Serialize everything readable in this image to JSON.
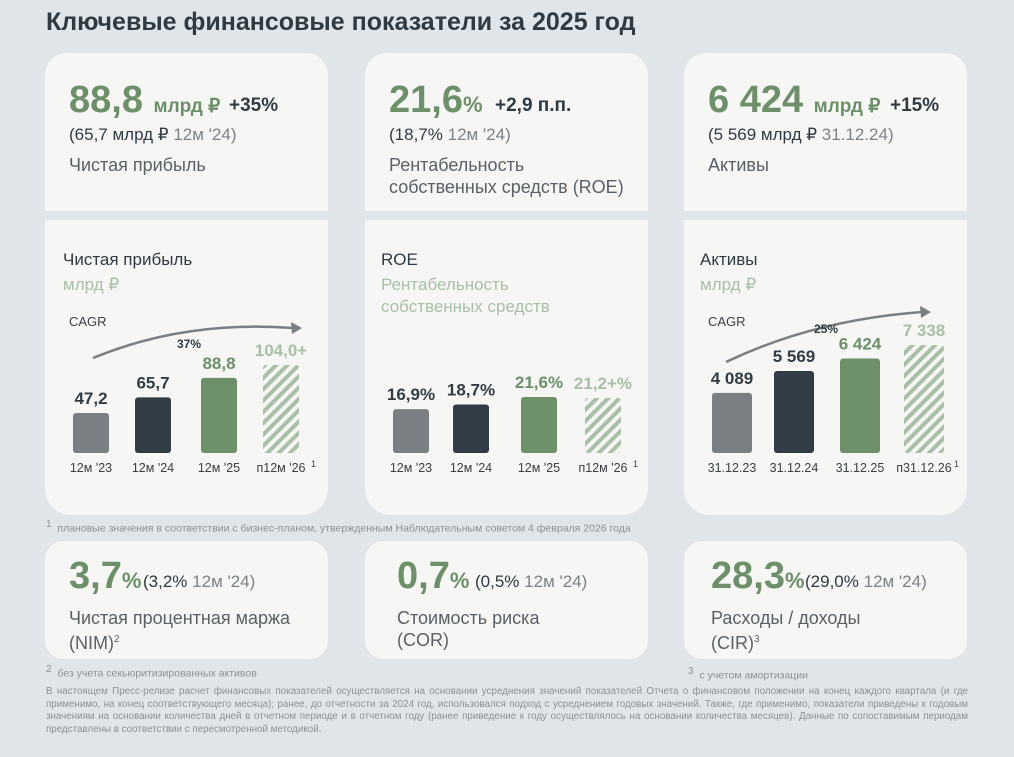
{
  "title": "Ключевые финансовые показатели за 2025 год",
  "colors": {
    "green": "#6d8f6a",
    "dark": "#323c44",
    "gray": "#7a7f84",
    "hatch": "#a9bfa7",
    "bg": "#e0e5e9",
    "card": "#f6f6f5"
  },
  "kpi_top": [
    {
      "value": "88,8",
      "unit": "млрд ₽",
      "delta": "+35%",
      "prev_a": "(65,7 млрд ₽",
      "prev_b": "12м '24)",
      "label_1": "Чистая прибыль",
      "label_2": ""
    },
    {
      "value": "21,6",
      "unit": "%",
      "delta": "+2,9 п.п.",
      "prev_a": "(18,7%",
      "prev_b": "12м '24)",
      "label_1": "Рентабельность",
      "label_2": "собственных средств (ROE)"
    },
    {
      "value": "6 424",
      "unit": "млрд ₽",
      "delta": "+15%",
      "prev_a": "(5 569 млрд ₽",
      "prev_b": "31.12.24)",
      "label_1": "Активы",
      "label_2": ""
    }
  ],
  "chart_data": [
    {
      "type": "bar",
      "title": "Чистая прибыль",
      "subtitle_1": "млрд ₽",
      "subtitle_2": "",
      "cagr_label": "CAGR",
      "cagr_value": "37%",
      "categories": [
        "12м '23",
        "12м '24",
        "12м '25",
        "п12м '26"
      ],
      "values": [
        47.2,
        65.7,
        88.8,
        104.0
      ],
      "value_labels": [
        "47,2",
        "65,7",
        "88,8",
        "104,0+"
      ],
      "footnote_mark": "1"
    },
    {
      "type": "bar",
      "title": "ROE",
      "subtitle_1": "Рентабельность",
      "subtitle_2": "собственных средств",
      "cagr_label": "",
      "cagr_value": "",
      "categories": [
        "12м '23",
        "12м '24",
        "12м '25",
        "п12м '26"
      ],
      "values": [
        16.9,
        18.7,
        21.6,
        21.2
      ],
      "value_labels": [
        "16,9%",
        "18,7%",
        "21,6%",
        "21,2+%"
      ],
      "footnote_mark": "1"
    },
    {
      "type": "bar",
      "title": "Активы",
      "subtitle_1": "млрд ₽",
      "subtitle_2": "",
      "cagr_label": "CAGR",
      "cagr_value": "25%",
      "categories": [
        "31.12.23",
        "31.12.24",
        "31.12.25",
        "п31.12.26"
      ],
      "values": [
        4089,
        5569,
        6424,
        7338
      ],
      "value_labels": [
        "4 089",
        "5 569",
        "6 424",
        "7 338"
      ],
      "footnote_mark": "1"
    }
  ],
  "footnote_1": "плановые значения в соответствии с бизнес-планом, утвержденным Наблюдательным советом 4 февраля 2026 года",
  "kpi_bottom": [
    {
      "value": "3,7",
      "unit": "%",
      "prev_a": "(3,2%",
      "prev_b": "12м '24)",
      "label_1": "Чистая процентная маржа",
      "label_2": "(NIM)",
      "mark": "2"
    },
    {
      "value": "0,7",
      "unit": "%",
      "prev_a": "(0,5%",
      "prev_b": "12м '24)",
      "label_1": "Стоимость риска",
      "label_2": "(COR)",
      "mark": ""
    },
    {
      "value": "28,3",
      "unit": "%",
      "prev_a": "(29,0%",
      "prev_b": "12м '24)",
      "label_1": "Расходы / доходы",
      "label_2": "(CIR)",
      "mark": "3"
    }
  ],
  "footnote_2": "без учета секьюритизированных активов",
  "footnote_3": "с учетом амортизации",
  "footnote_nums": {
    "n1": "1",
    "n2": "2",
    "n3": "3"
  },
  "disclaimer": "В настоящем Пресс-релизе расчет финансовых показателей осуществляется на основании усреднения значений показателей Отчета о финансовом положении на конец каждого квартала (и где применимо, на конец соответствующего месяца); ранее, до отчетности за 2024 год, использовался подход с усреднением годовых значений. Также, где применимо, показатели приведены к годовым значениям на основании количества дней в отчетном периоде и в отчетном году (ранее приведение к году осуществлялось на основании количества месяцев). Данные по сопоставимым периодам представлены в соответствии с пересмотренной методикой."
}
